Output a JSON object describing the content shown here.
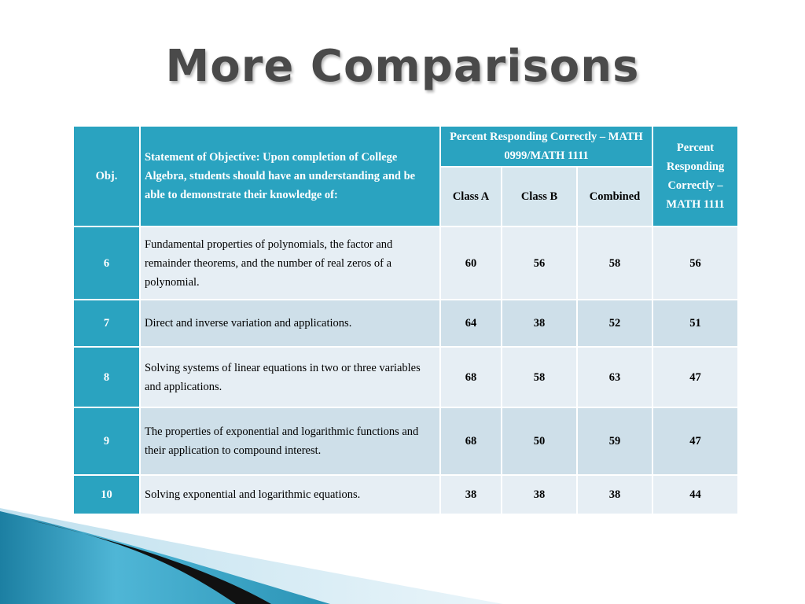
{
  "title": "More Comparisons",
  "table": {
    "headers": {
      "obj": "Obj.",
      "statement": "Statement of Objective:  Upon completion of College Algebra, students should have an understanding and be able to demonstrate their knowledge of:",
      "group": "Percent Responding Correctly – MATH 0999/MATH 1111",
      "class_a": "Class A",
      "class_b": "Class B",
      "combined": "Combined",
      "math1111": "Percent Responding Correctly – MATH 1111"
    },
    "rows": [
      {
        "obj": "6",
        "text": "Fundamental properties of polynomials, the factor and remainder theorems, and the number of real zeros of a polynomial.",
        "class_a": "60",
        "class_b": "56",
        "combined": "58",
        "math1111": "56"
      },
      {
        "obj": "7",
        "text": "Direct and inverse variation and applications.",
        "class_a": "64",
        "class_b": "38",
        "combined": "52",
        "math1111": "51"
      },
      {
        "obj": "8",
        "text": "Solving systems of linear equations in two or three variables and applications.",
        "class_a": "68",
        "class_b": "58",
        "combined": "63",
        "math1111": "47"
      },
      {
        "obj": "9",
        "text": "The properties of exponential and logarithmic functions and their application to compound interest.",
        "class_a": "68",
        "class_b": "50",
        "combined": "59",
        "math1111": "47"
      },
      {
        "obj": "10",
        "text": "Solving exponential and logarithmic equations.",
        "class_a": "38",
        "class_b": "38",
        "combined": "38",
        "math1111": "44"
      }
    ]
  },
  "colors": {
    "header_teal": "#2aa3c0",
    "row_light": "#e6eef4",
    "row_dark": "#cedfe9",
    "title_gray": "#4a4a4a"
  }
}
